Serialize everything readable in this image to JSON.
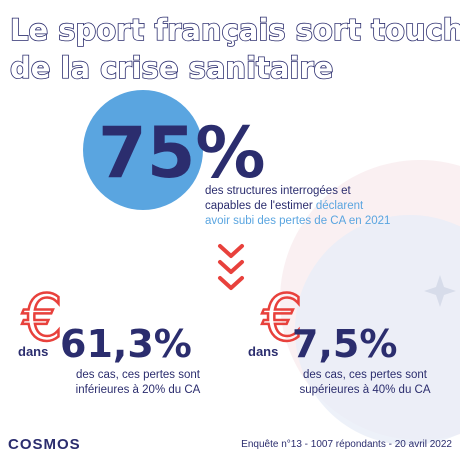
{
  "title": {
    "line1": "Le sport français sort touché",
    "line2": "de la crise sanitaire"
  },
  "headline": {
    "value": "75%",
    "line1": "des structures interrogées et",
    "line2": "capables de l'estimer",
    "line2_highlight": "déclarent",
    "line3": "avoir subi des pertes de CA en 2021"
  },
  "stats": [
    {
      "prefix": "dans",
      "value": "61,3%",
      "line1": "des cas, ces pertes sont",
      "line2": "inférieures à 20% du CA"
    },
    {
      "prefix": "dans",
      "value": "7,5%",
      "line1": "des cas, ces pertes sont",
      "line2": "supérieures à 40% du CA"
    }
  ],
  "footer": {
    "logo": "COSMOS",
    "source": "Enquête n°13 - 1007 répondants - 20 avril 2022"
  }
}
